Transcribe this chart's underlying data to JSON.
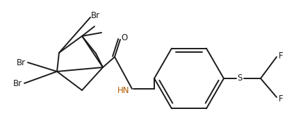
{
  "bg_color": "#ffffff",
  "bond_color": "#1a1a1a",
  "label_color_black": "#1a1a1a",
  "label_color_orange": "#b35900",
  "bond_width": 1.4,
  "font_size": 8.5,
  "figsize": [
    4.13,
    1.7
  ],
  "dpi": 100,
  "xlim": [
    0,
    41.3
  ],
  "ylim": [
    0,
    17.0
  ]
}
